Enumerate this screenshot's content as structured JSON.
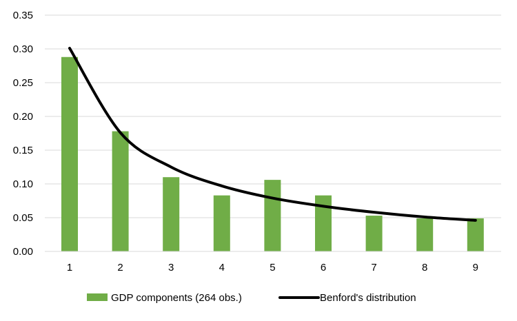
{
  "chart_data": {
    "type": "bar",
    "title": "",
    "xlabel": "",
    "ylabel": "",
    "categories": [
      "1",
      "2",
      "3",
      "4",
      "5",
      "6",
      "7",
      "8",
      "9"
    ],
    "ylim": [
      0,
      0.35
    ],
    "yticks": [
      "0.00",
      "0.05",
      "0.10",
      "0.15",
      "0.20",
      "0.25",
      "0.30",
      "0.35"
    ],
    "grid": true,
    "legend_position": "bottom",
    "series": [
      {
        "name": "GDP components (264 obs.)",
        "type": "bar",
        "color": "#70ad47",
        "values": [
          0.288,
          0.178,
          0.11,
          0.083,
          0.106,
          0.083,
          0.053,
          0.049,
          0.049
        ]
      },
      {
        "name": "Benford's distribution",
        "type": "line",
        "color": "#000000",
        "values": [
          0.301,
          0.176,
          0.125,
          0.097,
          0.079,
          0.067,
          0.058,
          0.051,
          0.046
        ]
      }
    ]
  }
}
